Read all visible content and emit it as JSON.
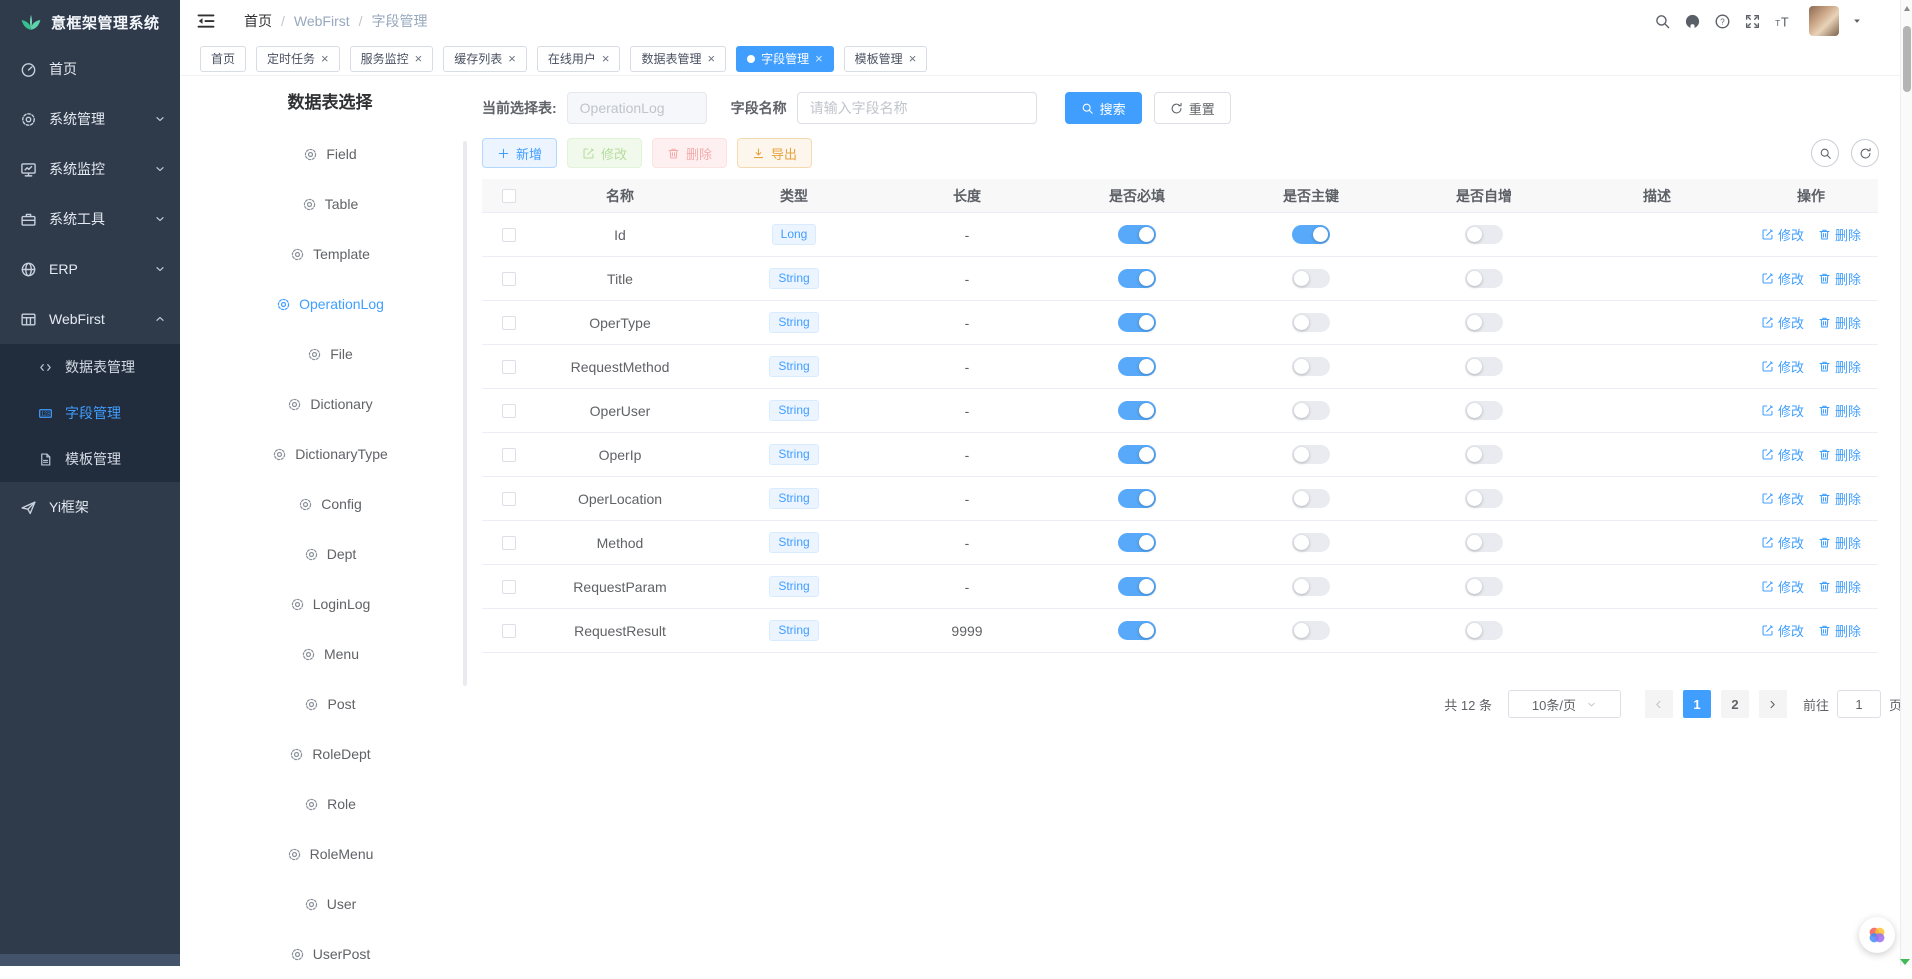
{
  "app_title": "意框架管理系统",
  "colors": {
    "accent": "#409eff",
    "sidebar_bg": "#2f3a4b",
    "submenu_bg": "#212c3d",
    "toggle_on": "#58a9f9",
    "export_orange": "#e6a23c",
    "active_tab": "#409eff"
  },
  "icons": {
    "close_glyph": "×"
  },
  "sidebar": {
    "items": [
      {
        "name": "home",
        "icon": "gauge",
        "label": "首页"
      },
      {
        "name": "system-management",
        "icon": "gear",
        "label": "系统管理",
        "chevron": "down"
      },
      {
        "name": "system-monitor",
        "icon": "monitor",
        "label": "系统监控",
        "chevron": "down"
      },
      {
        "name": "system-tools",
        "icon": "toolbox",
        "label": "系统工具",
        "chevron": "down"
      },
      {
        "name": "erp",
        "icon": "globe",
        "label": "ERP",
        "chevron": "down"
      },
      {
        "name": "webfirst",
        "icon": "grid",
        "label": "WebFirst",
        "chevron": "up",
        "expanded": true,
        "children": [
          {
            "name": "table-management",
            "icon": "code",
            "label": "数据表管理"
          },
          {
            "name": "field-management",
            "icon": "number",
            "label": "字段管理",
            "selected": true
          },
          {
            "name": "template-management",
            "icon": "document",
            "label": "模板管理"
          }
        ]
      },
      {
        "name": "yi-framework",
        "icon": "plane",
        "label": "Yi框架"
      }
    ]
  },
  "topbar": {
    "breadcrumb": [
      "首页",
      "WebFirst",
      "字段管理"
    ],
    "breadcrumb_separator": "/"
  },
  "tabs": [
    {
      "name": "home",
      "label": "首页",
      "closable": false
    },
    {
      "name": "scheduled-tasks",
      "label": "定时任务",
      "closable": true
    },
    {
      "name": "service-monitor",
      "label": "服务监控",
      "closable": true
    },
    {
      "name": "cache-list",
      "label": "缓存列表",
      "closable": true
    },
    {
      "name": "online-users",
      "label": "在线用户",
      "closable": true
    },
    {
      "name": "table-management",
      "label": "数据表管理",
      "closable": true
    },
    {
      "name": "field-management",
      "label": "字段管理",
      "closable": true,
      "active": true
    },
    {
      "name": "template-management",
      "label": "模板管理",
      "closable": true
    }
  ],
  "tree": {
    "title": "数据表选择",
    "items": [
      {
        "label": "Field"
      },
      {
        "label": "Table"
      },
      {
        "label": "Template"
      },
      {
        "label": "OperationLog",
        "selected": true
      },
      {
        "label": "File"
      },
      {
        "label": "Dictionary"
      },
      {
        "label": "DictionaryType"
      },
      {
        "label": "Config"
      },
      {
        "label": "Dept"
      },
      {
        "label": "LoginLog"
      },
      {
        "label": "Menu"
      },
      {
        "label": "Post"
      },
      {
        "label": "RoleDept"
      },
      {
        "label": "Role"
      },
      {
        "label": "RoleMenu"
      },
      {
        "label": "User"
      },
      {
        "label": "UserPost"
      }
    ]
  },
  "filter": {
    "table_label": "当前选择表:",
    "table_value": "OperationLog",
    "field_label": "字段名称",
    "field_placeholder": "请输入字段名称",
    "search_label": "搜索",
    "reset_label": "重置"
  },
  "toolbar": {
    "add": "新增",
    "edit": "修改",
    "delete": "删除",
    "export": "导出"
  },
  "table": {
    "headers": [
      "名称",
      "类型",
      "长度",
      "是否必填",
      "是否主键",
      "是否自增",
      "描述",
      "操作"
    ],
    "actions": {
      "edit": "修改",
      "delete": "删除"
    },
    "rows": [
      {
        "name": "Id",
        "type": "Long",
        "length": "-",
        "required": true,
        "primary": true,
        "increment": false,
        "description": ""
      },
      {
        "name": "Title",
        "type": "String",
        "length": "-",
        "required": true,
        "primary": false,
        "increment": false,
        "description": ""
      },
      {
        "name": "OperType",
        "type": "String",
        "length": "-",
        "required": true,
        "primary": false,
        "increment": false,
        "description": ""
      },
      {
        "name": "RequestMethod",
        "type": "String",
        "length": "-",
        "required": true,
        "primary": false,
        "increment": false,
        "description": ""
      },
      {
        "name": "OperUser",
        "type": "String",
        "length": "-",
        "required": true,
        "primary": false,
        "increment": false,
        "description": ""
      },
      {
        "name": "OperIp",
        "type": "String",
        "length": "-",
        "required": true,
        "primary": false,
        "increment": false,
        "description": ""
      },
      {
        "name": "OperLocation",
        "type": "String",
        "length": "-",
        "required": true,
        "primary": false,
        "increment": false,
        "description": ""
      },
      {
        "name": "Method",
        "type": "String",
        "length": "-",
        "required": true,
        "primary": false,
        "increment": false,
        "description": ""
      },
      {
        "name": "RequestParam",
        "type": "String",
        "length": "-",
        "required": true,
        "primary": false,
        "increment": false,
        "description": ""
      },
      {
        "name": "RequestResult",
        "type": "String",
        "length": "9999",
        "required": true,
        "primary": false,
        "increment": false,
        "description": ""
      }
    ]
  },
  "pagination": {
    "total": "共 12 条",
    "page_size": "10条/页",
    "pages": [
      "1",
      "2"
    ],
    "current": "1",
    "goto_label": "前往",
    "goto_value": "1",
    "unit_label": "页"
  }
}
